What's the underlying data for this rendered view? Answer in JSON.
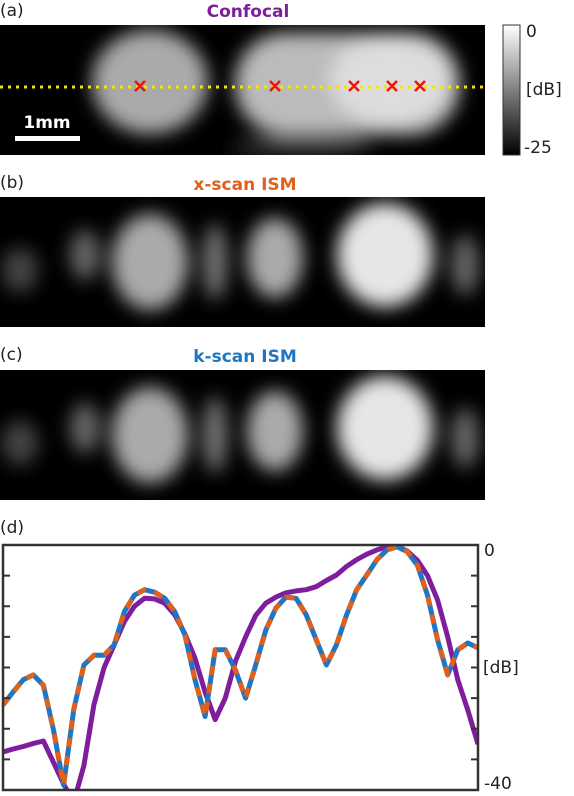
{
  "chart_data": {
    "type": "line",
    "panel_labels": [
      "(a)",
      "(b)",
      "(c)",
      "(d)"
    ],
    "scale_bar": "1mm",
    "colorbar": {
      "label": "[dB]",
      "ticks": [
        0,
        -25
      ]
    },
    "ylabel": "[dB]",
    "ylim": [
      -40,
      0
    ],
    "yticks": [
      0,
      {
        "value": -5,
        "label": null
      },
      {
        "value": -10,
        "label": null
      },
      {
        "value": -15,
        "label": null
      },
      {
        "value": -20,
        "label": null
      },
      {
        "value": -25,
        "label": null
      },
      {
        "value": -30,
        "label": null
      },
      {
        "value": -35,
        "label": null
      },
      -40
    ],
    "categories": [
      null,
      null,
      null,
      null,
      null,
      null,
      null,
      null,
      null,
      null,
      null,
      null,
      null,
      null,
      null,
      null,
      null,
      null,
      null,
      null,
      null,
      null,
      null,
      null,
      null,
      null,
      null,
      null,
      null,
      null,
      null,
      null,
      null,
      null,
      null,
      null,
      null,
      null,
      null,
      null,
      null,
      null,
      null,
      null,
      null,
      null,
      null,
      null
    ],
    "series": [
      {
        "name": "Confocal",
        "color": "#7e1e9c",
        "values": [
          -33.8,
          -33.3,
          -32.9,
          -32.4,
          -32.0,
          -35.5,
          -39.0,
          -42,
          -36,
          -26,
          -20,
          -16.3,
          -12.5,
          -10.0,
          -8.7,
          -8.8,
          -9.5,
          -11.4,
          -14.5,
          -18.5,
          -24,
          -28.5,
          -25,
          -19,
          -15,
          -11.5,
          -9.5,
          -8.5,
          -7.8,
          -7.5,
          -7.3,
          -6.8,
          -5.8,
          -4.9,
          -3.5,
          -2.4,
          -1.5,
          -0.8,
          -0.3,
          -0.2,
          -1.0,
          -2.5,
          -5.0,
          -9.0,
          -15,
          -22,
          -27,
          -32.5
        ]
      },
      {
        "name": "x-scan ISM",
        "color": "#e0601c",
        "values": [
          -26.1,
          -24.0,
          -22.0,
          -21.2,
          -22.9,
          -30.2,
          -39.2,
          -26.9,
          -19.6,
          -18.0,
          -18.0,
          -16.3,
          -10.9,
          -8.2,
          -7.3,
          -7.7,
          -8.7,
          -10.9,
          -14.7,
          -22.0,
          -28,
          -17.1,
          -17.1,
          -20.4,
          -25.0,
          -19.6,
          -13.9,
          -10.3,
          -8.5,
          -8.7,
          -11.4,
          -15.5,
          -19.6,
          -16.3,
          -11.4,
          -7.3,
          -4.9,
          -2.4,
          -0.8,
          -0.3,
          -1.1,
          -3.3,
          -8.2,
          -15.5,
          -21.2,
          -17.1,
          -16.0,
          -16.8
        ]
      },
      {
        "name": "k-scan ISM",
        "color": "#1f77c4",
        "values": [
          -26.1,
          -24.0,
          -22.0,
          -21.2,
          -22.9,
          -30.2,
          -39.2,
          -26.9,
          -19.6,
          -18.0,
          -18.0,
          -16.3,
          -10.9,
          -8.2,
          -7.3,
          -7.7,
          -8.7,
          -10.9,
          -14.7,
          -22.0,
          -28,
          -17.1,
          -17.1,
          -20.4,
          -25.0,
          -19.6,
          -13.9,
          -10.3,
          -8.5,
          -8.7,
          -11.4,
          -15.5,
          -19.6,
          -16.3,
          -11.4,
          -7.3,
          -4.9,
          -2.4,
          -0.8,
          -0.3,
          -1.1,
          -3.3,
          -8.2,
          -15.5,
          -21.2,
          -17.1,
          -16.0,
          -16.8
        ]
      }
    ]
  }
}
